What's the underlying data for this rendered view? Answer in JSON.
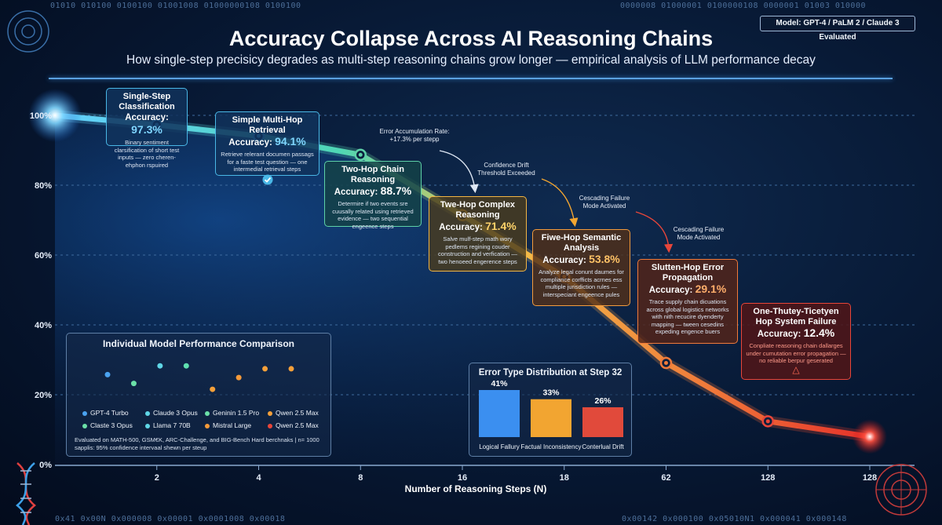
{
  "binary": {
    "top_left": "01010  010100  0100100  01001008  01000000108  0100100",
    "top_right": "0000008  01000001  0100000108  0000001  01003  010000",
    "bottom_left": "0x41  0x00N  0x000008  0x00001  0x0001008  0x00018",
    "bottom_right": "0x00142  0x000100  0x05010N1  0x000041  0x000148"
  },
  "model_badge": "Model: GPT-4 / PaLM 2 / Claude 3 Evaluated",
  "chart_data": {
    "type": "line",
    "title": "Accuracy Collapse Across AI Reasoning Chains",
    "subtitle": "How single-step precisicy degrades as multi-step reasoning chains grow longer — empirical analysis of LLM performance decay",
    "xlabel": "Number of Reasoning Steps (N)",
    "ylabel": "",
    "x_ticks": [
      "2",
      "4",
      "8",
      "16",
      "18",
      "62",
      "128",
      "128"
    ],
    "y_ticks": [
      "0%",
      "20%",
      "40%",
      "60%",
      "80%",
      "100%"
    ],
    "ylim": [
      0,
      100
    ],
    "x": [
      1,
      2,
      4,
      8,
      16,
      18,
      62,
      128,
      128
    ],
    "values": [
      100,
      97.3,
      94.1,
      88.7,
      71.4,
      53.8,
      29.1,
      12.4,
      8
    ],
    "grid": true
  },
  "callouts": [
    {
      "title": "Single-Step Classification",
      "acc_label": "Accuracy:",
      "acc": "97.3%",
      "desc": "Binary sentiment clarsification of short test inputs — zero cheren-ehphon rspuired",
      "color": "#49b7e6",
      "val_color": "#7fd6ff"
    },
    {
      "title": "Simple Multi-Hop Retrieval",
      "acc_label": "Accuracy:",
      "acc": "94.1%",
      "desc": "Retrieve relerant documen passags for a faste test question — one intermedial retrieval steps",
      "color": "#49b7e6",
      "val_color": "#7fd6ff"
    },
    {
      "title": "Two-Hop Chain Reasoning",
      "acc_label": "Accuracy:",
      "acc": "88.7%",
      "desc": "Determire if two events sre cuusally related using retrieved evidence — two sequential engeence steps",
      "color": "#5ed1a8",
      "val_color": "#ffffff"
    },
    {
      "title": "Twe-Hop Complex Reasoning",
      "acc_label": "Accuracy:",
      "acc": "71.4%",
      "desc": "Salve mulf-step math wory pedlems regining couder construction and verfication — two henoeed engerence steps",
      "color": "#f2b544",
      "val_color": "#ffd36a"
    },
    {
      "title": "Fiwe-Hop Semantic Analysis",
      "acc_label": "Accuracy:",
      "acc": "53.8%",
      "desc": "Analyze legal conunt daumes for compliance corfficts acrnes ess multiple jurisdiction rules — interspeciant engeence pules",
      "color": "#f29b3d",
      "val_color": "#ffc266"
    },
    {
      "title": "Slutten-Hop Error Propagation",
      "acc_label": "Accuracy:",
      "acc": "29.1%",
      "desc": "Trace supply chain dicuations across global logistics networks with nith recucire dyenderty mapping — tween cesedins expeding engence buers",
      "color": "#f07a3a",
      "val_color": "#ffae6b"
    },
    {
      "title": "One-Thutey-Ticetyen Hop System Failure",
      "acc_label": "Accuracy:",
      "acc": "12.4%",
      "desc": "Conpliate reasoning chain dallarges under cumutation error propagation — no reliable berpur geserated",
      "color": "#e8463a",
      "val_color": "#ffffff"
    }
  ],
  "annotations": [
    {
      "text": "Error Accumulation Rate: +17.3% per stepp"
    },
    {
      "text": "Confidence Drift Threshold Exceeded"
    },
    {
      "text": "Cescading Failure Mode Activated"
    },
    {
      "text": "Cescading Failure Mode Activated"
    }
  ],
  "model_panel": {
    "title": "Individual Model Performance Comparison",
    "scatter": [
      {
        "color": "#4aa3f0",
        "value": 24
      },
      {
        "color": "#6be0a8",
        "value": 21
      },
      {
        "color": "#5fd6e6",
        "value": 27
      },
      {
        "color": "#5fe0b0",
        "value": 27
      },
      {
        "color": "#f5a03a",
        "value": 19
      },
      {
        "color": "#f59a3a",
        "value": 23
      },
      {
        "color": "#f5a03a",
        "value": 26
      },
      {
        "color": "#f5a03a",
        "value": 26
      }
    ],
    "legend": [
      {
        "label": "GPT-4 Turbo",
        "color": "#4aa3f0"
      },
      {
        "label": "Claude 3 Opus",
        "color": "#5fd6e6"
      },
      {
        "label": "Geninin 1.5 Pro",
        "color": "#6be0a8"
      },
      {
        "label": "Qwen 2.5 Max",
        "color": "#f5a03a"
      },
      {
        "label": "Claste 3 Opus",
        "color": "#6be0a8"
      },
      {
        "label": "Llama 7 70B",
        "color": "#5fd6e6"
      },
      {
        "label": "Mistral Large",
        "color": "#f59a3a"
      },
      {
        "label": "Qwen 2.5 Max",
        "color": "#e8463a"
      }
    ],
    "footnote": "Evaluated on MATH-500, GSM€K, ARC-Challenge, and BIG-Bench Hard berchnaks | n= 1000 sapplis: 95% confidence intervaal shewn per steup"
  },
  "error_panel": {
    "title": "Error Type Distribution at Step 32",
    "bars": [
      {
        "label": "Logical Fallury",
        "value": 41,
        "display": "41%",
        "color": "#3b8ff0"
      },
      {
        "label": "Factual Inconsistency",
        "value": 33,
        "display": "33%",
        "color": "#f2a531"
      },
      {
        "label": "Conterlual Drift",
        "value": 26,
        "display": "26%",
        "color": "#e14a3b"
      }
    ]
  }
}
